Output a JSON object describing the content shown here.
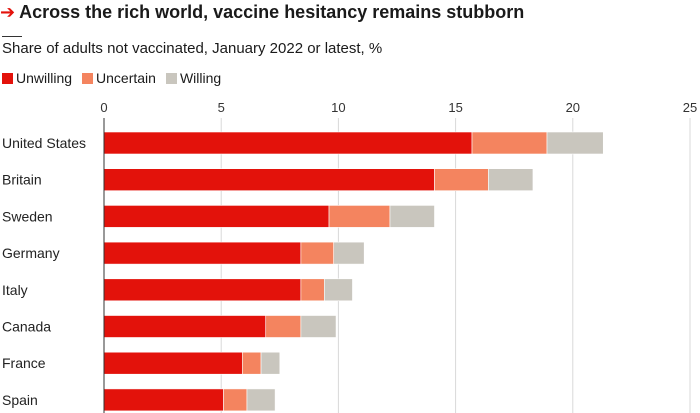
{
  "header": {
    "title": "Across the rich world, vaccine hesitancy remains stubborn",
    "subtitle": "Share of adults not vaccinated, January 2022 or latest, %"
  },
  "legend": [
    {
      "label": "Unwilling",
      "color": "#e3120b"
    },
    {
      "label": "Uncertain",
      "color": "#f4845f"
    },
    {
      "label": "Willing",
      "color": "#c9c6be"
    }
  ],
  "chart_data": {
    "type": "bar",
    "orientation": "horizontal",
    "stacked": true,
    "title": "Across the rich world, vaccine hesitancy remains stubborn",
    "subtitle": "Share of adults not vaccinated, January 2022 or latest, %",
    "categories": [
      "United States",
      "Britain",
      "Sweden",
      "Germany",
      "Italy",
      "Canada",
      "France",
      "Spain"
    ],
    "series": [
      {
        "name": "Unwilling",
        "color": "#e3120b",
        "values": [
          15.7,
          14.1,
          9.6,
          8.4,
          8.4,
          6.9,
          5.9,
          5.1
        ]
      },
      {
        "name": "Uncertain",
        "color": "#f4845f",
        "values": [
          3.2,
          2.3,
          2.6,
          1.4,
          1.0,
          1.5,
          0.8,
          1.0
        ]
      },
      {
        "name": "Willing",
        "color": "#c9c6be",
        "values": [
          2.4,
          1.9,
          1.9,
          1.3,
          1.2,
          1.5,
          0.8,
          1.2
        ]
      }
    ],
    "xlim": [
      0,
      25
    ],
    "xticks": [
      "0",
      "5",
      "10",
      "15",
      "20",
      "25"
    ],
    "grid": true,
    "legend_position": "top-left"
  }
}
